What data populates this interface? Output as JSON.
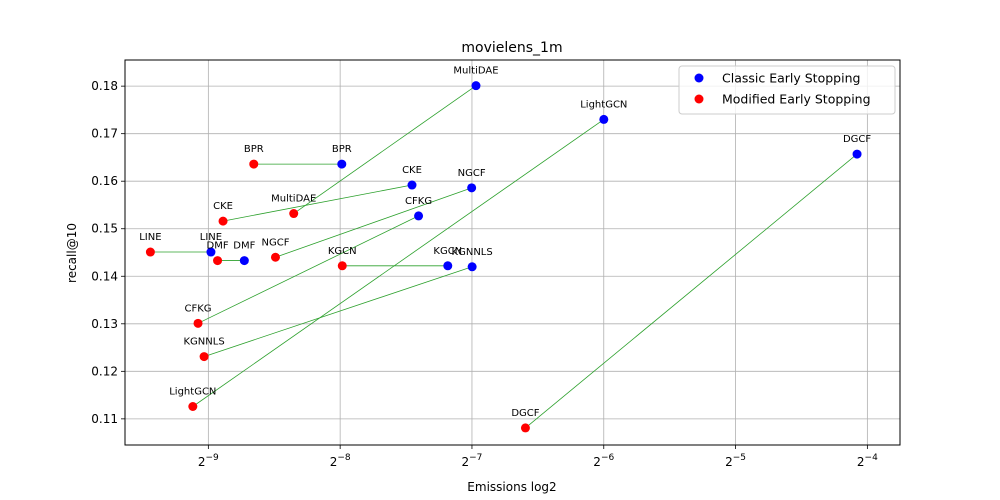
{
  "chart_data": {
    "type": "scatter",
    "title": "movielens_1m",
    "xlabel": "Emissions log2",
    "ylabel": "recall@10",
    "x_scale": "log2",
    "xlim": [
      0.00126,
      0.0742
    ],
    "ylim": [
      0.1045,
      0.1855
    ],
    "x_ticks": [
      {
        "value": 0.001953125,
        "base": "2",
        "exp": "−9"
      },
      {
        "value": 0.00390625,
        "base": "2",
        "exp": "−8"
      },
      {
        "value": 0.0078125,
        "base": "2",
        "exp": "−7"
      },
      {
        "value": 0.015625,
        "base": "2",
        "exp": "−6"
      },
      {
        "value": 0.03125,
        "base": "2",
        "exp": "−5"
      },
      {
        "value": 0.0625,
        "base": "2",
        "exp": "−4"
      }
    ],
    "y_ticks": [
      0.11,
      0.12,
      0.13,
      0.14,
      0.15,
      0.16,
      0.17,
      0.18
    ],
    "y_tick_labels": [
      "0.11",
      "0.12",
      "0.13",
      "0.14",
      "0.15",
      "0.16",
      "0.17",
      "0.18"
    ],
    "grid": true,
    "legend_position": "top-right",
    "series": [
      {
        "name": "Classic Early Stopping",
        "color": "#0000ff",
        "points": [
          {
            "label": "MultiDAE",
            "x": 0.00798,
            "y": 0.1801
          },
          {
            "label": "LightGCN",
            "x": 0.01563,
            "y": 0.173
          },
          {
            "label": "DGCF",
            "x": 0.0592,
            "y": 0.1657
          },
          {
            "label": "BPR",
            "x": 0.00394,
            "y": 0.1636
          },
          {
            "label": "CKE",
            "x": 0.0057,
            "y": 0.1592
          },
          {
            "label": "NGCF",
            "x": 0.0078,
            "y": 0.1586
          },
          {
            "label": "CFKG",
            "x": 0.0059,
            "y": 0.1527
          },
          {
            "label": "LINE",
            "x": 0.00198,
            "y": 0.1451
          },
          {
            "label": "DMF",
            "x": 0.00236,
            "y": 0.1433
          },
          {
            "label": "KGCN",
            "x": 0.00688,
            "y": 0.1422
          },
          {
            "label": "KGNNLS",
            "x": 0.00782,
            "y": 0.142
          }
        ]
      },
      {
        "name": "Modified Early Stopping",
        "color": "#ff0000",
        "points": [
          {
            "label": "BPR",
            "x": 0.00248,
            "y": 0.1636
          },
          {
            "label": "MultiDAE",
            "x": 0.00306,
            "y": 0.1532
          },
          {
            "label": "CKE",
            "x": 0.00211,
            "y": 0.1516
          },
          {
            "label": "LINE",
            "x": 0.00144,
            "y": 0.1451
          },
          {
            "label": "NGCF",
            "x": 0.00278,
            "y": 0.144
          },
          {
            "label": "DMF",
            "x": 0.00205,
            "y": 0.1433
          },
          {
            "label": "KGCN",
            "x": 0.00395,
            "y": 0.1422
          },
          {
            "label": "CFKG",
            "x": 0.00185,
            "y": 0.1301
          },
          {
            "label": "KGNNLS",
            "x": 0.00191,
            "y": 0.1231
          },
          {
            "label": "LightGCN",
            "x": 0.0018,
            "y": 0.1126
          },
          {
            "label": "DGCF",
            "x": 0.01035,
            "y": 0.1081
          }
        ]
      }
    ],
    "connections_color": "#2ca02c"
  }
}
